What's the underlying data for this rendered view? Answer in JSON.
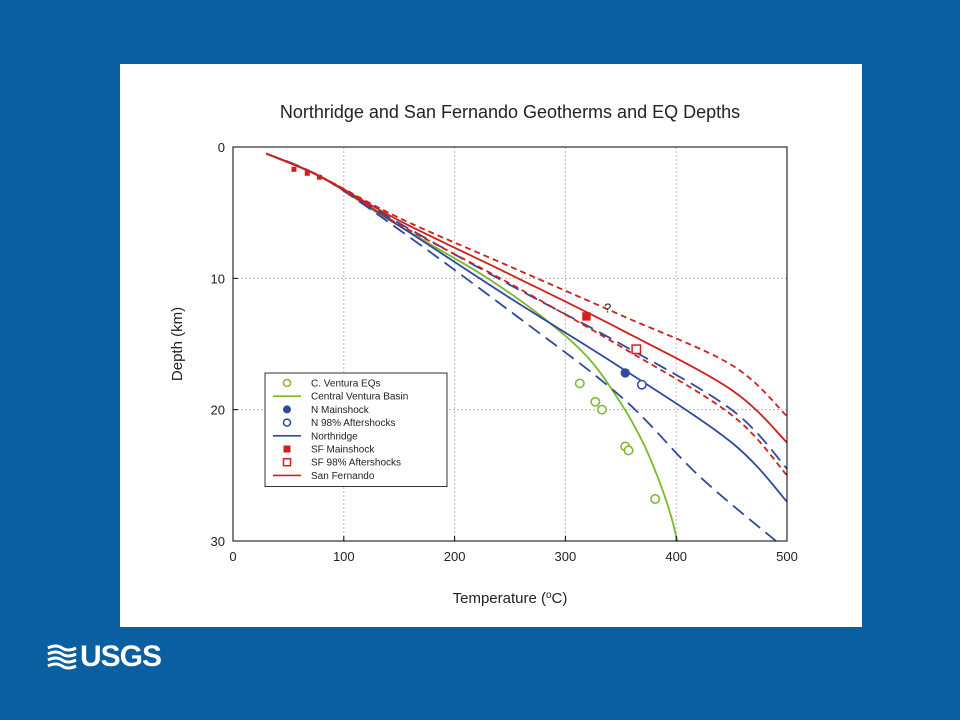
{
  "logo": {
    "text": "USGS"
  },
  "chart_data": {
    "type": "line",
    "title": "Northridge and San Fernando Geotherms and EQ Depths",
    "xlabel_main": "Temperature (",
    "xlabel_sup": "o",
    "xlabel_end": "C)",
    "ylabel": "Depth (km)",
    "xlim": [
      0,
      500
    ],
    "ylim": [
      30,
      0
    ],
    "xticks": [
      0,
      100,
      200,
      300,
      400,
      500
    ],
    "yticks": [
      0,
      10,
      20,
      30
    ],
    "grid": true,
    "annotation": {
      "text": "?",
      "x": 335,
      "y": 12.6
    },
    "legend": {
      "placement": "lower-left",
      "entries": [
        {
          "label": "C. Ventura EQs",
          "kind": "open-circle",
          "color": "#7ab929"
        },
        {
          "label": "Central Ventura Basin",
          "kind": "line",
          "color": "#7ab929"
        },
        {
          "label": "N Mainshock",
          "kind": "filled-circle",
          "color": "#2e4a9e"
        },
        {
          "label": "N 98% Aftershocks",
          "kind": "open-circle",
          "color": "#2e4a9e"
        },
        {
          "label": "Northridge",
          "kind": "line",
          "color": "#2e4a9e"
        },
        {
          "label": "SF Mainshock",
          "kind": "filled-square",
          "color": "#d0201b"
        },
        {
          "label": "SF 98% Aftershocks",
          "kind": "open-square",
          "color": "#d0201b"
        },
        {
          "label": "San Fernando",
          "kind": "line",
          "color": "#d0201b"
        }
      ]
    },
    "series": [
      {
        "name": "Central Ventura Basin",
        "color": "#7ab929",
        "style": "solid",
        "points": [
          [
            30,
            0.5
          ],
          [
            80,
            2.3
          ],
          [
            130,
            5.0
          ],
          [
            180,
            7.5
          ],
          [
            230,
            10.0
          ],
          [
            280,
            13.0
          ],
          [
            320,
            16.0
          ],
          [
            350,
            19.5
          ],
          [
            370,
            22.5
          ],
          [
            385,
            25.5
          ],
          [
            395,
            28.0
          ],
          [
            401,
            30.0
          ]
        ]
      },
      {
        "name": "Northridge",
        "color": "#2e4a9e",
        "style": "solid",
        "points": [
          [
            30,
            0.5
          ],
          [
            80,
            2.3
          ],
          [
            150,
            6.0
          ],
          [
            250,
            11.5
          ],
          [
            350,
            16.8
          ],
          [
            450,
            22.5
          ],
          [
            500,
            27.0
          ]
        ]
      },
      {
        "name": "Northridge upper",
        "color": "#2e4a9e",
        "style": "dashed",
        "points": [
          [
            30,
            0.5
          ],
          [
            80,
            2.3
          ],
          [
            150,
            5.8
          ],
          [
            250,
            10.5
          ],
          [
            350,
            15.0
          ],
          [
            450,
            20.0
          ],
          [
            500,
            24.5
          ]
        ]
      },
      {
        "name": "Northridge lower",
        "color": "#2e4a9e",
        "style": "dashed",
        "points": [
          [
            30,
            0.5
          ],
          [
            80,
            2.3
          ],
          [
            150,
            6.3
          ],
          [
            250,
            12.5
          ],
          [
            350,
            19.0
          ],
          [
            420,
            25.0
          ],
          [
            490,
            30.0
          ]
        ]
      },
      {
        "name": "San Fernando",
        "color": "#d0201b",
        "style": "solid",
        "points": [
          [
            30,
            0.5
          ],
          [
            80,
            2.3
          ],
          [
            150,
            5.6
          ],
          [
            250,
            9.7
          ],
          [
            350,
            13.9
          ],
          [
            450,
            18.5
          ],
          [
            500,
            22.5
          ]
        ]
      },
      {
        "name": "San Fernando upper",
        "color": "#d0201b",
        "style": "dashed",
        "points": [
          [
            30,
            0.5
          ],
          [
            80,
            2.3
          ],
          [
            150,
            5.4
          ],
          [
            250,
            9.1
          ],
          [
            350,
            12.8
          ],
          [
            450,
            16.6
          ],
          [
            500,
            20.5
          ]
        ]
      },
      {
        "name": "San Fernando lower",
        "color": "#d0201b",
        "style": "dashed",
        "points": [
          [
            30,
            0.5
          ],
          [
            80,
            2.3
          ],
          [
            150,
            5.9
          ],
          [
            250,
            10.4
          ],
          [
            350,
            15.2
          ],
          [
            450,
            20.4
          ],
          [
            500,
            25.0
          ]
        ]
      }
    ],
    "points": [
      {
        "name": "C. Ventura EQs",
        "kind": "open-circle",
        "color": "#7ab929",
        "values": [
          [
            313,
            18.0
          ],
          [
            327,
            19.4
          ],
          [
            333,
            20.0
          ],
          [
            354,
            22.8
          ],
          [
            357,
            23.1
          ],
          [
            381,
            26.8
          ]
        ]
      },
      {
        "name": "N Mainshock",
        "kind": "filled-circle",
        "color": "#2e4a9e",
        "values": [
          [
            354,
            17.2
          ]
        ]
      },
      {
        "name": "N 98% Aftershocks",
        "kind": "open-circle",
        "color": "#2e4a9e",
        "values": [
          [
            369,
            18.1
          ]
        ]
      },
      {
        "name": "SF Mainshock",
        "kind": "filled-square",
        "color": "#d0201b",
        "values": [
          [
            319,
            12.9
          ]
        ]
      },
      {
        "name": "SF 98% Aftershocks",
        "kind": "open-square",
        "color": "#d0201b",
        "values": [
          [
            364,
            15.4
          ]
        ]
      },
      {
        "name": "Shallow markers",
        "kind": "small-filled-square",
        "color": "#d0201b",
        "values": [
          [
            55,
            1.7
          ],
          [
            67,
            2.0
          ],
          [
            78,
            2.3
          ]
        ]
      }
    ]
  }
}
